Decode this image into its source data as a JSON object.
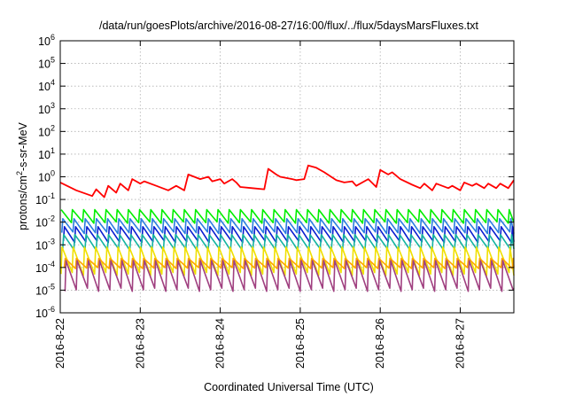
{
  "chart_data": {
    "type": "line",
    "title": "/data/run/goesPlots/archive/2016-08-27/16:00/flux/../flux/5daysMarsFluxes.txt",
    "xlabel": "Coordinated Universal Time (UTC)",
    "ylabel_parts": {
      "base": "protons/cm",
      "sup": "2",
      "rest": "-s-sr-MeV"
    },
    "y_scale": "log",
    "ylim": [
      1e-06,
      1000000.0
    ],
    "y_ticks": [
      {
        "base": "10",
        "exp": "-6",
        "value": -6
      },
      {
        "base": "10",
        "exp": "-5",
        "value": -5
      },
      {
        "base": "10",
        "exp": "-4",
        "value": -4
      },
      {
        "base": "10",
        "exp": "-3",
        "value": -3
      },
      {
        "base": "10",
        "exp": "-2",
        "value": -2
      },
      {
        "base": "10",
        "exp": "-1",
        "value": -1
      },
      {
        "base": "10",
        "exp": "0",
        "value": 0
      },
      {
        "base": "10",
        "exp": "1",
        "value": 1
      },
      {
        "base": "10",
        "exp": "2",
        "value": 2
      },
      {
        "base": "10",
        "exp": "3",
        "value": 3
      },
      {
        "base": "10",
        "exp": "4",
        "value": 4
      },
      {
        "base": "10",
        "exp": "5",
        "value": 5
      },
      {
        "base": "10",
        "exp": "6",
        "value": 6
      }
    ],
    "xlim": [
      "2016-08-22 00:00",
      "2016-08-27 16:00"
    ],
    "x_ticks": [
      "2016-8-22",
      "2016-8-23",
      "2016-8-24",
      "2016-8-25",
      "2016-8-26",
      "2016-8-27"
    ],
    "grid": true,
    "legend": "none",
    "series_note": "sawtooth series, x in days after 2016-08-22 00:00, y = log10(flux)",
    "series": [
      {
        "color": "#ff0000",
        "x": [
          0.0,
          0.2,
          0.4,
          0.45,
          0.55,
          0.6,
          0.7,
          0.75,
          0.85,
          0.9,
          1.0,
          1.05,
          1.2,
          1.35,
          1.45,
          1.55,
          1.6,
          1.75,
          1.85,
          1.9,
          2.0,
          2.05,
          2.15,
          2.2,
          2.25,
          2.4,
          2.55,
          2.6,
          2.7,
          2.75,
          2.9,
          2.95,
          3.05,
          3.1,
          3.2,
          3.3,
          3.45,
          3.55,
          3.65,
          3.7,
          3.85,
          3.95,
          4.0,
          4.1,
          4.15,
          4.25,
          4.4,
          4.5,
          4.55,
          4.65,
          4.7,
          4.85,
          4.9,
          5.0,
          5.05,
          5.15,
          5.2,
          5.3,
          5.35,
          5.45,
          5.5,
          5.6,
          5.67
        ],
        "y": [
          -0.25,
          -0.6,
          -0.85,
          -0.55,
          -0.9,
          -0.4,
          -0.7,
          -0.3,
          -0.6,
          -0.1,
          -0.3,
          -0.2,
          -0.4,
          -0.6,
          -0.4,
          -0.6,
          0.1,
          -0.1,
          0.0,
          -0.2,
          -0.1,
          -0.3,
          -0.1,
          -0.25,
          -0.45,
          -0.5,
          -0.55,
          0.35,
          0.1,
          0.0,
          -0.1,
          -0.15,
          -0.1,
          0.5,
          0.4,
          0.2,
          -0.15,
          -0.25,
          -0.2,
          -0.4,
          -0.1,
          -0.45,
          0.3,
          0.1,
          0.2,
          -0.1,
          -0.35,
          -0.5,
          -0.3,
          -0.6,
          -0.3,
          -0.5,
          -0.4,
          -0.6,
          -0.25,
          -0.4,
          -0.3,
          -0.5,
          -0.3,
          -0.5,
          -0.3,
          -0.5,
          -0.15
        ]
      },
      {
        "color": "#00ee00",
        "hi": -1.45,
        "lo": -2.05,
        "period": 0.14,
        "phase": 0.0
      },
      {
        "color": "#2b7fe0",
        "hi": -1.85,
        "lo": -2.5,
        "period": 0.14,
        "phase": 0.02
      },
      {
        "color": "#0a1ed0",
        "hi": -2.2,
        "lo": -2.9,
        "period": 0.14,
        "phase": 0.04
      },
      {
        "color": "#14b4a0",
        "hi": -2.55,
        "lo": -3.25,
        "period": 0.14,
        "phase": 0.03
      },
      {
        "color": "#f0e000",
        "hi": -3.1,
        "lo": -4.35,
        "period": 0.14,
        "phase": 0.01
      },
      {
        "color": "#ffa500",
        "hi": -3.6,
        "lo": -4.05,
        "period": 0.14,
        "phase": 0.05
      },
      {
        "color": "#a04080",
        "hi": -3.7,
        "lo": -5.05,
        "period": 0.14,
        "phase": 0.06
      }
    ]
  }
}
